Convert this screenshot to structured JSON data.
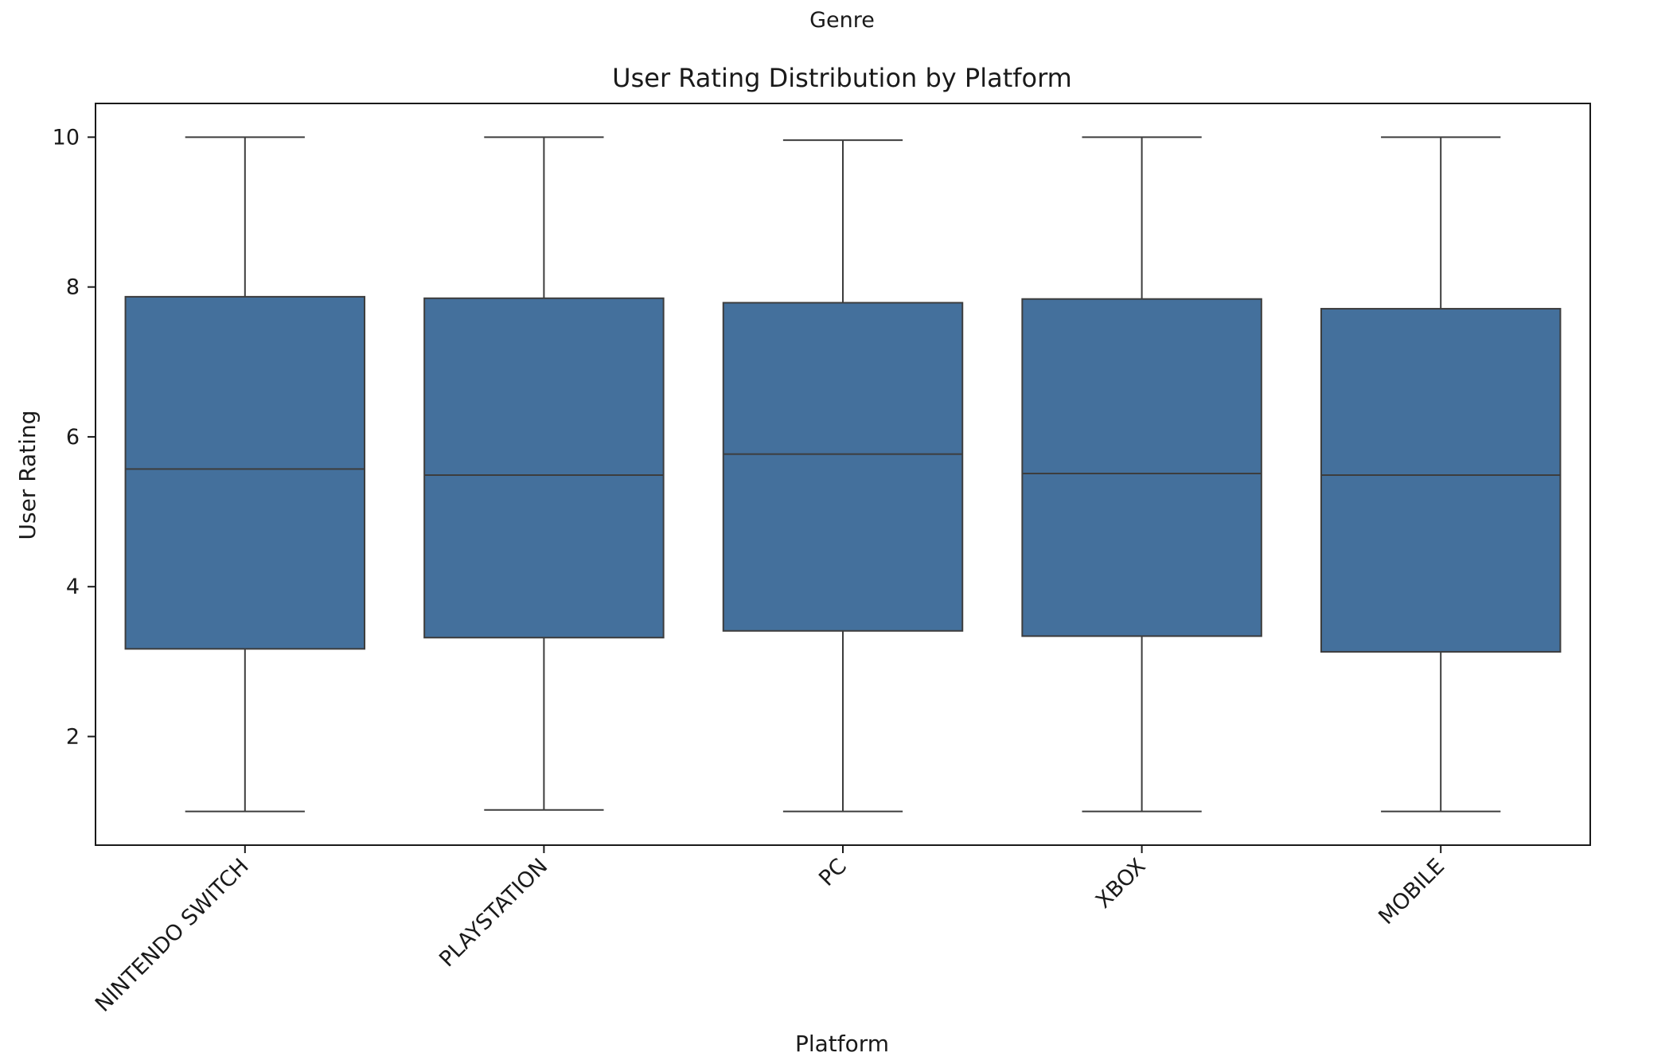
{
  "chart_data": {
    "type": "box",
    "suptitle": "Genre",
    "title": "User Rating Distribution by Platform",
    "xlabel": "Platform",
    "ylabel": "User Rating",
    "ylim": [
      0.55,
      10.45
    ],
    "yticks": [
      2,
      4,
      6,
      8,
      10
    ],
    "ytick_labels": [
      "2",
      "4",
      "6",
      "8",
      "10"
    ],
    "categories": [
      "NINTENDO SWITCH",
      "PLAYSTATION",
      "PC",
      "XBOX",
      "MOBILE"
    ],
    "series": [
      {
        "boxes": [
          {
            "whisker_low": 1.0,
            "q1": 3.17,
            "median": 5.57,
            "q3": 7.87,
            "whisker_high": 10.0
          },
          {
            "whisker_low": 1.02,
            "q1": 3.32,
            "median": 5.49,
            "q3": 7.85,
            "whisker_high": 10.0
          },
          {
            "whisker_low": 1.0,
            "q1": 3.41,
            "median": 5.77,
            "q3": 7.79,
            "whisker_high": 9.96
          },
          {
            "whisker_low": 1.0,
            "q1": 3.34,
            "median": 5.51,
            "q3": 7.84,
            "whisker_high": 10.0
          },
          {
            "whisker_low": 1.0,
            "q1": 3.13,
            "median": 5.49,
            "q3": 7.71,
            "whisker_high": 10.0
          }
        ]
      }
    ],
    "colors": {
      "box_fill": "#44709c",
      "line": "#3d3d3d",
      "axes": "#1a1a1a"
    },
    "grid": false,
    "x_tick_rotation": -45
  }
}
